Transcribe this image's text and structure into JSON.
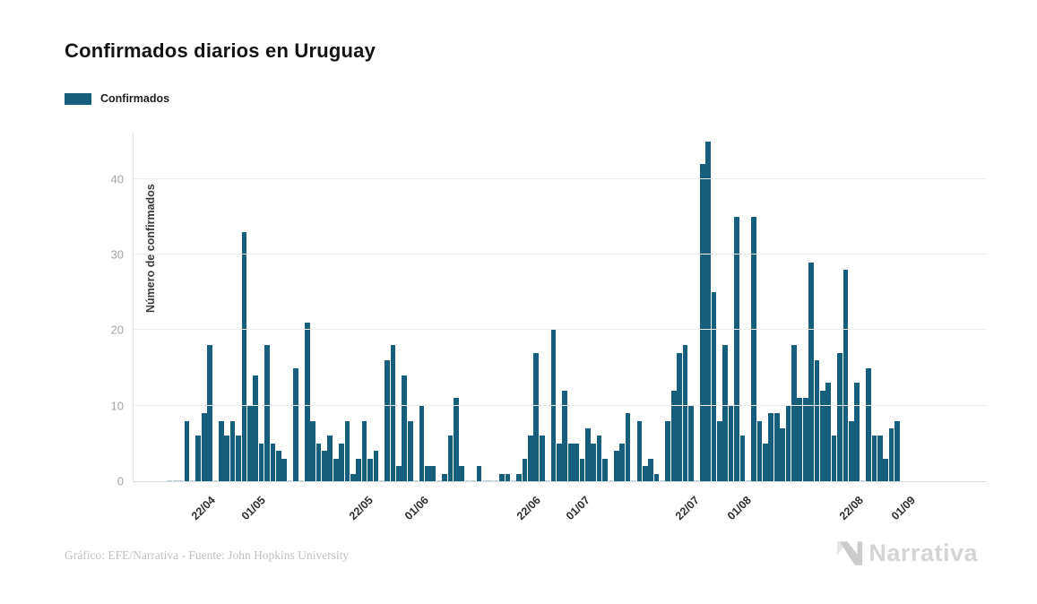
{
  "title": "Confirmados diarios en Uruguay",
  "legend": {
    "label": "Confirmados",
    "color": "#155f7d"
  },
  "footer": {
    "credit": "Gráfico: EFE/Narrativa - Fuente: John Hopkins University"
  },
  "logo": {
    "text": "Narrativa"
  },
  "chart_data": {
    "type": "bar",
    "title": "Confirmados diarios en Uruguay",
    "series_name": "Confirmados",
    "xlabel": "",
    "ylabel": "Número de confirmados",
    "bar_color": "#155f7d",
    "grid": "horizontal",
    "legend_position": "top-left",
    "y_ticks": [
      0,
      10,
      20,
      30,
      40
    ],
    "y_max_units": 46.15,
    "x_ticks": [
      {
        "label": "22/04",
        "pct": 8.8
      },
      {
        "label": "01/05",
        "pct": 14.7
      },
      {
        "label": "22/05",
        "pct": 27.3
      },
      {
        "label": "01/06",
        "pct": 33.8
      },
      {
        "label": "22/06",
        "pct": 47.0
      },
      {
        "label": "01/07",
        "pct": 52.7
      },
      {
        "label": "22/07",
        "pct": 65.5
      },
      {
        "label": "01/08",
        "pct": 71.6
      },
      {
        "label": "22/08",
        "pct": 84.8
      },
      {
        "label": "01/09",
        "pct": 90.9
      }
    ],
    "x_range_note": "daily bars from mid-April to end of August 2020",
    "values": [
      0,
      0,
      0,
      8,
      0,
      6,
      9,
      18,
      0,
      8,
      6,
      8,
      6,
      33,
      10,
      14,
      5,
      18,
      5,
      4,
      3,
      0,
      15,
      0,
      21,
      8,
      5,
      4,
      6,
      3,
      5,
      8,
      1,
      3,
      8,
      3,
      4,
      0,
      16,
      18,
      2,
      14,
      8,
      0,
      10,
      2,
      2,
      0,
      1,
      6,
      11,
      2,
      0,
      0,
      2,
      0,
      0,
      0,
      1,
      1,
      0,
      1,
      3,
      6,
      17,
      6,
      0,
      20,
      5,
      12,
      5,
      5,
      3,
      7,
      5,
      6,
      3,
      0,
      4,
      5,
      9,
      0,
      8,
      2,
      3,
      1,
      0,
      8,
      12,
      17,
      18,
      10,
      0,
      42,
      45,
      25,
      8,
      18,
      10,
      35,
      6,
      0,
      35,
      8,
      5,
      9,
      9,
      7,
      10,
      18,
      11,
      11,
      29,
      16,
      12,
      13,
      6,
      17,
      28,
      8,
      13,
      0,
      15,
      6,
      6,
      3,
      7,
      8
    ]
  }
}
